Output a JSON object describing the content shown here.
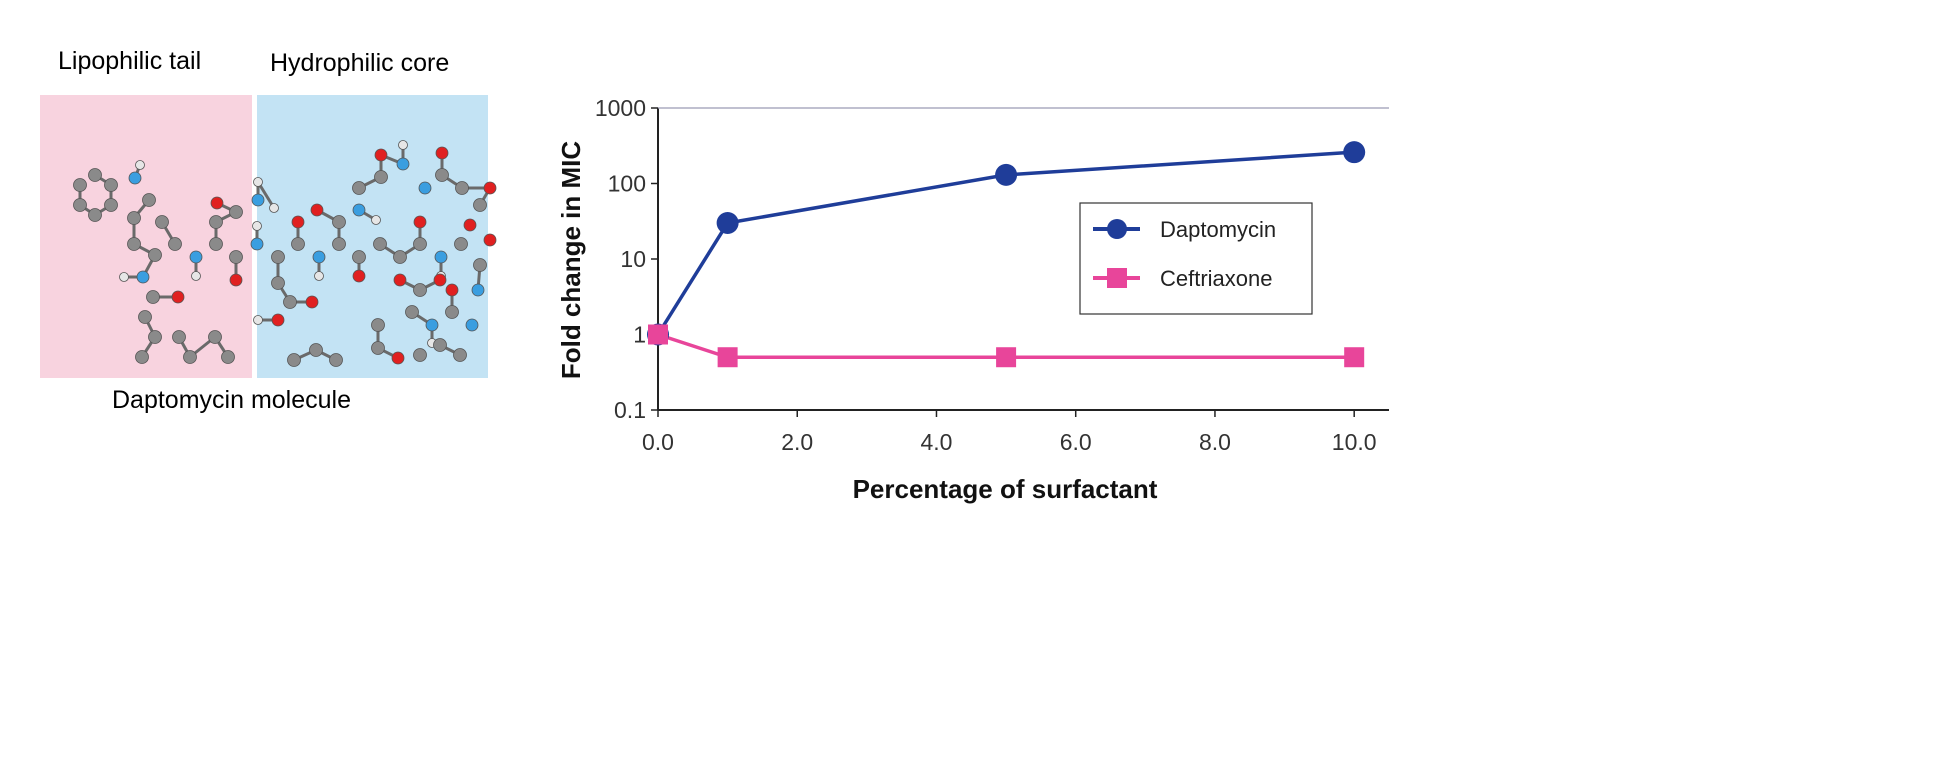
{
  "molecule": {
    "left_label": "Lipophilic tail",
    "right_label": "Hydrophilic core",
    "caption": "Daptomycin molecule",
    "colors": {
      "lipophilic_bg": "#f8d3df",
      "hydrophilic_bg": "#c3e3f4",
      "carbon": "#8a8a8a",
      "nitrogen": "#3a9ee0",
      "oxygen": "#e02020",
      "hydrogen": "#e6e6e6"
    }
  },
  "chart_data": {
    "type": "line",
    "title": "",
    "xlabel": "Percentage of surfactant",
    "ylabel": "Fold change in MIC",
    "yscale": "log",
    "xlim": [
      0,
      10.5
    ],
    "ylim": [
      0.1,
      1000
    ],
    "xticks": [
      "0.0",
      "2.0",
      "4.0",
      "6.0",
      "8.0",
      "10.0"
    ],
    "yticks": [
      "0.1",
      "1",
      "10",
      "100",
      "1000"
    ],
    "grid": false,
    "legend_position": "right",
    "x": [
      0,
      1,
      5,
      10
    ],
    "series": [
      {
        "name": "Daptomycin",
        "values": [
          1,
          30,
          130,
          260
        ],
        "color": "#1f3d99",
        "marker": "circle"
      },
      {
        "name": "Ceftriaxone",
        "values": [
          1,
          0.5,
          0.5,
          0.5
        ],
        "color": "#e8459a",
        "marker": "square"
      }
    ]
  }
}
